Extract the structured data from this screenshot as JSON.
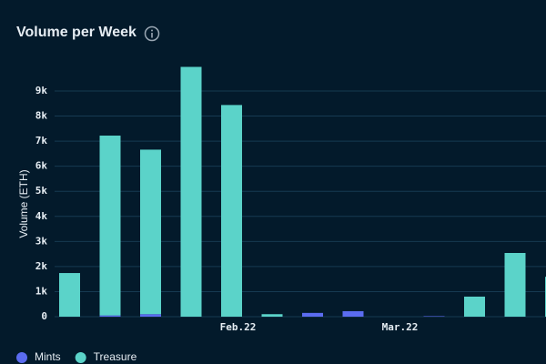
{
  "chart_data": {
    "type": "bar",
    "stacked": true,
    "title": "Volume per Week",
    "y_label": "Volume (ETH)",
    "categories": [
      null,
      null,
      null,
      null,
      "Feb.22",
      null,
      null,
      null,
      "Mar.22",
      null,
      null,
      null,
      null
    ],
    "series": [
      {
        "name": "Mints",
        "color": "#5b6cf0",
        "values": [
          0,
          50,
          100,
          0,
          0,
          0,
          150,
          220,
          0,
          20,
          0,
          0,
          0
        ]
      },
      {
        "name": "Treasure",
        "color": "#5bd3c9",
        "values": [
          1740,
          7170,
          6560,
          9960,
          8440,
          100,
          0,
          0,
          0,
          0,
          800,
          2540,
          1590
        ]
      }
    ],
    "ylim": [
      0,
      10000
    ],
    "yticks": [
      0,
      {
        "value": 1000,
        "label": "1k"
      },
      {
        "value": 2000,
        "label": "2k"
      },
      {
        "value": 3000,
        "label": "3k"
      },
      {
        "value": 4000,
        "label": "4k"
      },
      {
        "value": 5000,
        "label": "5k"
      },
      {
        "value": 6000,
        "label": "6k"
      },
      {
        "value": 7000,
        "label": "7k"
      },
      {
        "value": 8000,
        "label": "8k"
      },
      {
        "value": 9000,
        "label": "9k"
      }
    ],
    "grid": true
  }
}
